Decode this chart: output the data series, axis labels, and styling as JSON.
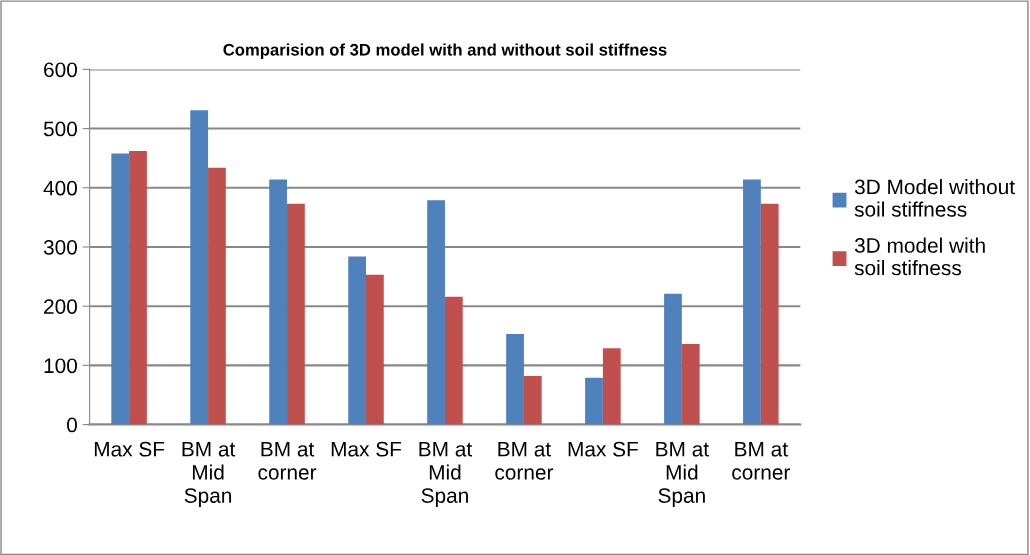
{
  "chart_data": {
    "type": "bar",
    "title": "Comparision of 3D model with and without soil stiffness",
    "categories": [
      "Max SF",
      "BM at Mid Span",
      "BM at corner",
      "Max SF",
      "BM at Mid Span",
      "BM at corner",
      "Max SF",
      "BM at Mid Span",
      "BM at corner"
    ],
    "series": [
      {
        "name": "3D Model without soil stiffness",
        "color": "#4f81bd",
        "values": [
          458,
          531,
          414,
          284,
          379,
          153,
          79,
          221,
          414
        ]
      },
      {
        "name": "3D model with soil stifness",
        "color": "#c0504d",
        "values": [
          462,
          434,
          373,
          253,
          216,
          82,
          129,
          136,
          373
        ]
      }
    ],
    "ylim": [
      0,
      600
    ],
    "yticks": [
      0,
      100,
      200,
      300,
      400,
      500,
      600
    ],
    "grid": "y",
    "legend": "right"
  }
}
